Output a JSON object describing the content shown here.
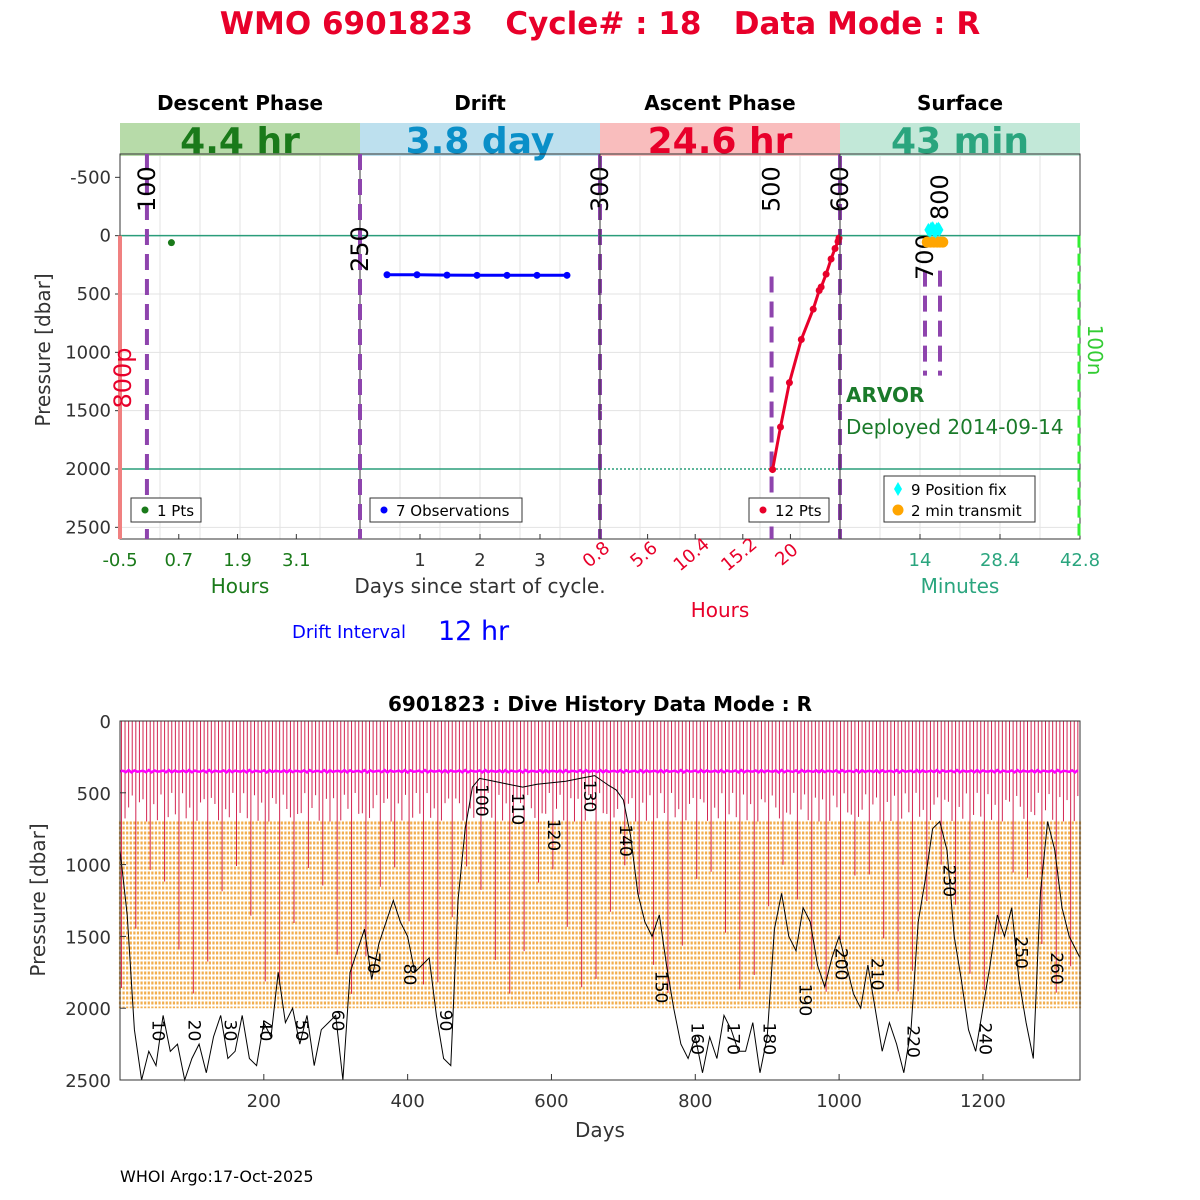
{
  "title": "WMO 6901823   Cycle# : 18   Data Mode : R",
  "footer": "WHOI Argo:17-Oct-2025",
  "colors": {
    "title": "#e8002a",
    "descent": "#1a7a1a",
    "drift": "#0a8fc8",
    "ascent": "#e8002a",
    "surface": "#2aa57e",
    "mark": "#8e44ad",
    "drift_obs": "#0000ff",
    "ascent_pts": "#e8002a",
    "position": "#00ffff",
    "transmit": "#ffa500"
  },
  "top": {
    "ylabel": "Pressure [dbar]",
    "yticks": [
      "-500",
      "0",
      "500",
      "1000",
      "1500",
      "2000",
      "2500"
    ],
    "ylim": [
      -700,
      2600
    ],
    "ref_lines": [
      0,
      2000
    ],
    "side_left": "800p",
    "side_right": "100n",
    "float_type": "ARVOR",
    "deployed": "Deployed 2014-09-14",
    "drift_interval_label": "Drift Interval",
    "drift_interval_value": "12 hr",
    "panels": [
      {
        "key": "descent",
        "name": "Descent Phase",
        "duration": "4.4 hr",
        "xlim": [
          -0.5,
          4.4
        ],
        "xticks": [
          "-0.5",
          "0.7",
          "1.9",
          "3.1"
        ],
        "xlabel": "Hours",
        "marks": [
          {
            "label": "100",
            "x": 0.05
          }
        ],
        "points": [
          {
            "x": 0.55,
            "y": 60
          }
        ],
        "legend": [
          "1 Pts"
        ]
      },
      {
        "key": "drift",
        "name": "Drift",
        "duration": "3.8 day",
        "xlim": [
          0,
          4.0
        ],
        "xticks": [
          "1",
          "2",
          "3"
        ],
        "xlabel": "Days since start of cycle.",
        "marks": [
          {
            "label": "250",
            "x": 0.0
          },
          {
            "label": "300",
            "x": 4.0
          }
        ],
        "points": [
          {
            "x": 0.45,
            "y": 335
          },
          {
            "x": 0.95,
            "y": 335
          },
          {
            "x": 1.45,
            "y": 338
          },
          {
            "x": 1.95,
            "y": 340
          },
          {
            "x": 2.45,
            "y": 340
          },
          {
            "x": 2.95,
            "y": 340
          },
          {
            "x": 3.45,
            "y": 340
          }
        ],
        "legend": [
          "7 Observations"
        ]
      },
      {
        "key": "ascent",
        "name": "Ascent Phase",
        "duration": "24.6 hr",
        "xlim": [
          0.8,
          25.0
        ],
        "xticks": [
          "0.8",
          "5.6",
          "10.4",
          "15.2",
          "20"
        ],
        "xlabel": "Hours",
        "marks": [
          {
            "label": "500",
            "x": 18.1
          },
          {
            "label": "600",
            "x": 25.0
          }
        ],
        "points": [
          {
            "x": 18.2,
            "y": 2005
          },
          {
            "x": 19.0,
            "y": 1640
          },
          {
            "x": 19.9,
            "y": 1260
          },
          {
            "x": 21.1,
            "y": 890
          },
          {
            "x": 22.3,
            "y": 630
          },
          {
            "x": 22.9,
            "y": 470
          },
          {
            "x": 23.1,
            "y": 440
          },
          {
            "x": 23.6,
            "y": 330
          },
          {
            "x": 24.1,
            "y": 200
          },
          {
            "x": 24.5,
            "y": 110
          },
          {
            "x": 24.8,
            "y": 50
          },
          {
            "x": 24.9,
            "y": 20
          }
        ],
        "legend": [
          "12 Pts"
        ]
      },
      {
        "key": "surface",
        "name": "Surface",
        "duration": "43 min",
        "xlim": [
          -0.4,
          42.8
        ],
        "xticks": [
          "14",
          "28.4",
          "42.8"
        ],
        "xlabel": "Minutes",
        "marks": [
          {
            "label": "700",
            "x": 14.9
          },
          {
            "label": "800",
            "x": 17.6
          }
        ],
        "positions": [
          {
            "x": 15.5,
            "y": -50
          },
          {
            "x": 16.0,
            "y": -60
          },
          {
            "x": 16.5,
            "y": -45
          },
          {
            "x": 17.0,
            "y": -55
          },
          {
            "x": 17.5,
            "y": -50
          },
          {
            "x": 15.8,
            "y": -40
          },
          {
            "x": 16.3,
            "y": -65
          },
          {
            "x": 16.8,
            "y": -35
          },
          {
            "x": 17.3,
            "y": -60
          }
        ],
        "transmits": [
          {
            "x": 15.3,
            "y": 55
          },
          {
            "x": 15.9,
            "y": 55
          },
          {
            "x": 16.5,
            "y": 55
          },
          {
            "x": 17.1,
            "y": 55
          },
          {
            "x": 17.6,
            "y": 55
          },
          {
            "x": 18.1,
            "y": 55
          }
        ],
        "legend": [
          "9 Position fix",
          "2 min transmit"
        ]
      }
    ]
  },
  "bottom": {
    "title": "6901823 : Dive History      Data Mode : R",
    "xlabel": "Days",
    "ylabel": "Pressure [dbar]",
    "xticks": [
      "200",
      "400",
      "600",
      "800",
      "1000",
      "1200"
    ],
    "yticks": [
      "0",
      "500",
      "1000",
      "1500",
      "2000",
      "2500"
    ],
    "xlim": [
      0,
      1335
    ],
    "ylim": [
      0,
      2500
    ],
    "profile_bottom": 2000,
    "profile_band": [
      700,
      2000
    ],
    "drift_depth": 350,
    "cycle_labels": [
      "10",
      "20",
      "30",
      "40",
      "50",
      "60",
      "70",
      "80",
      "90",
      "100",
      "110",
      "120",
      "130",
      "140",
      "150",
      "160",
      "170",
      "180",
      "190",
      "200",
      "210",
      "220",
      "230",
      "240",
      "250",
      "260"
    ],
    "cycle_label_pos": [
      {
        "day": 45,
        "p": 2080
      },
      {
        "day": 95,
        "p": 2080
      },
      {
        "day": 145,
        "p": 2080
      },
      {
        "day": 195,
        "p": 2080
      },
      {
        "day": 245,
        "p": 2080
      },
      {
        "day": 295,
        "p": 2010
      },
      {
        "day": 345,
        "p": 1610
      },
      {
        "day": 395,
        "p": 1690
      },
      {
        "day": 445,
        "p": 2010
      },
      {
        "day": 495,
        "p": 440
      },
      {
        "day": 545,
        "p": 500
      },
      {
        "day": 595,
        "p": 680
      },
      {
        "day": 645,
        "p": 410
      },
      {
        "day": 695,
        "p": 720
      },
      {
        "day": 745,
        "p": 1740
      },
      {
        "day": 795,
        "p": 2100
      },
      {
        "day": 845,
        "p": 2100
      },
      {
        "day": 895,
        "p": 2100
      },
      {
        "day": 945,
        "p": 1830
      },
      {
        "day": 995,
        "p": 1580
      },
      {
        "day": 1045,
        "p": 1650
      },
      {
        "day": 1095,
        "p": 2120
      },
      {
        "day": 1145,
        "p": 1000
      },
      {
        "day": 1195,
        "p": 2100
      },
      {
        "day": 1245,
        "p": 1500
      },
      {
        "day": 1295,
        "p": 1610
      }
    ],
    "trace_path": [
      [
        0,
        900
      ],
      [
        10,
        1350
      ],
      [
        20,
        2150
      ],
      [
        30,
        2500
      ],
      [
        40,
        2300
      ],
      [
        50,
        2400
      ],
      [
        60,
        2050
      ],
      [
        70,
        2300
      ],
      [
        80,
        2250
      ],
      [
        90,
        2500
      ],
      [
        100,
        2350
      ],
      [
        110,
        2250
      ],
      [
        120,
        2450
      ],
      [
        130,
        2200
      ],
      [
        140,
        2050
      ],
      [
        150,
        2350
      ],
      [
        160,
        2300
      ],
      [
        170,
        2050
      ],
      [
        180,
        2350
      ],
      [
        190,
        2400
      ],
      [
        200,
        2100
      ],
      [
        210,
        2200
      ],
      [
        220,
        1750
      ],
      [
        230,
        2100
      ],
      [
        240,
        2000
      ],
      [
        250,
        2250
      ],
      [
        260,
        2050
      ],
      [
        270,
        2400
      ],
      [
        280,
        2150
      ],
      [
        290,
        2100
      ],
      [
        300,
        2050
      ],
      [
        310,
        2500
      ],
      [
        320,
        1750
      ],
      [
        330,
        1600
      ],
      [
        340,
        1450
      ],
      [
        350,
        1800
      ],
      [
        360,
        1550
      ],
      [
        370,
        1400
      ],
      [
        380,
        1250
      ],
      [
        390,
        1400
      ],
      [
        400,
        1500
      ],
      [
        410,
        1750
      ],
      [
        420,
        1700
      ],
      [
        430,
        1650
      ],
      [
        440,
        2050
      ],
      [
        450,
        2350
      ],
      [
        460,
        2400
      ],
      [
        470,
        1250
      ],
      [
        480,
        750
      ],
      [
        490,
        460
      ],
      [
        500,
        400
      ],
      [
        520,
        420
      ],
      [
        540,
        440
      ],
      [
        560,
        460
      ],
      [
        580,
        440
      ],
      [
        600,
        430
      ],
      [
        620,
        420
      ],
      [
        640,
        400
      ],
      [
        660,
        380
      ],
      [
        680,
        450
      ],
      [
        690,
        480
      ],
      [
        700,
        550
      ],
      [
        710,
        800
      ],
      [
        720,
        1200
      ],
      [
        730,
        1400
      ],
      [
        740,
        1500
      ],
      [
        750,
        1350
      ],
      [
        760,
        1700
      ],
      [
        770,
        2000
      ],
      [
        780,
        2250
      ],
      [
        790,
        2350
      ],
      [
        800,
        2200
      ],
      [
        810,
        2450
      ],
      [
        820,
        2200
      ],
      [
        830,
        2350
      ],
      [
        840,
        2050
      ],
      [
        850,
        2150
      ],
      [
        860,
        2300
      ],
      [
        870,
        2300
      ],
      [
        880,
        2100
      ],
      [
        890,
        2450
      ],
      [
        900,
        2200
      ],
      [
        910,
        1450
      ],
      [
        920,
        1200
      ],
      [
        930,
        1500
      ],
      [
        940,
        1600
      ],
      [
        950,
        1300
      ],
      [
        960,
        1400
      ],
      [
        970,
        1700
      ],
      [
        980,
        1850
      ],
      [
        990,
        1650
      ],
      [
        1000,
        1500
      ],
      [
        1010,
        1700
      ],
      [
        1020,
        1900
      ],
      [
        1030,
        2000
      ],
      [
        1040,
        1700
      ],
      [
        1050,
        2000
      ],
      [
        1060,
        2300
      ],
      [
        1070,
        2100
      ],
      [
        1080,
        2250
      ],
      [
        1090,
        2450
      ],
      [
        1100,
        2150
      ],
      [
        1110,
        1400
      ],
      [
        1120,
        1100
      ],
      [
        1130,
        750
      ],
      [
        1140,
        700
      ],
      [
        1150,
        900
      ],
      [
        1160,
        1500
      ],
      [
        1170,
        1800
      ],
      [
        1180,
        2150
      ],
      [
        1190,
        2300
      ],
      [
        1200,
        2000
      ],
      [
        1210,
        1700
      ],
      [
        1220,
        1350
      ],
      [
        1230,
        1500
      ],
      [
        1240,
        1300
      ],
      [
        1250,
        1800
      ],
      [
        1260,
        2100
      ],
      [
        1270,
        2350
      ],
      [
        1280,
        1200
      ],
      [
        1290,
        700
      ],
      [
        1300,
        900
      ],
      [
        1310,
        1300
      ],
      [
        1320,
        1500
      ],
      [
        1335,
        1650
      ]
    ]
  }
}
